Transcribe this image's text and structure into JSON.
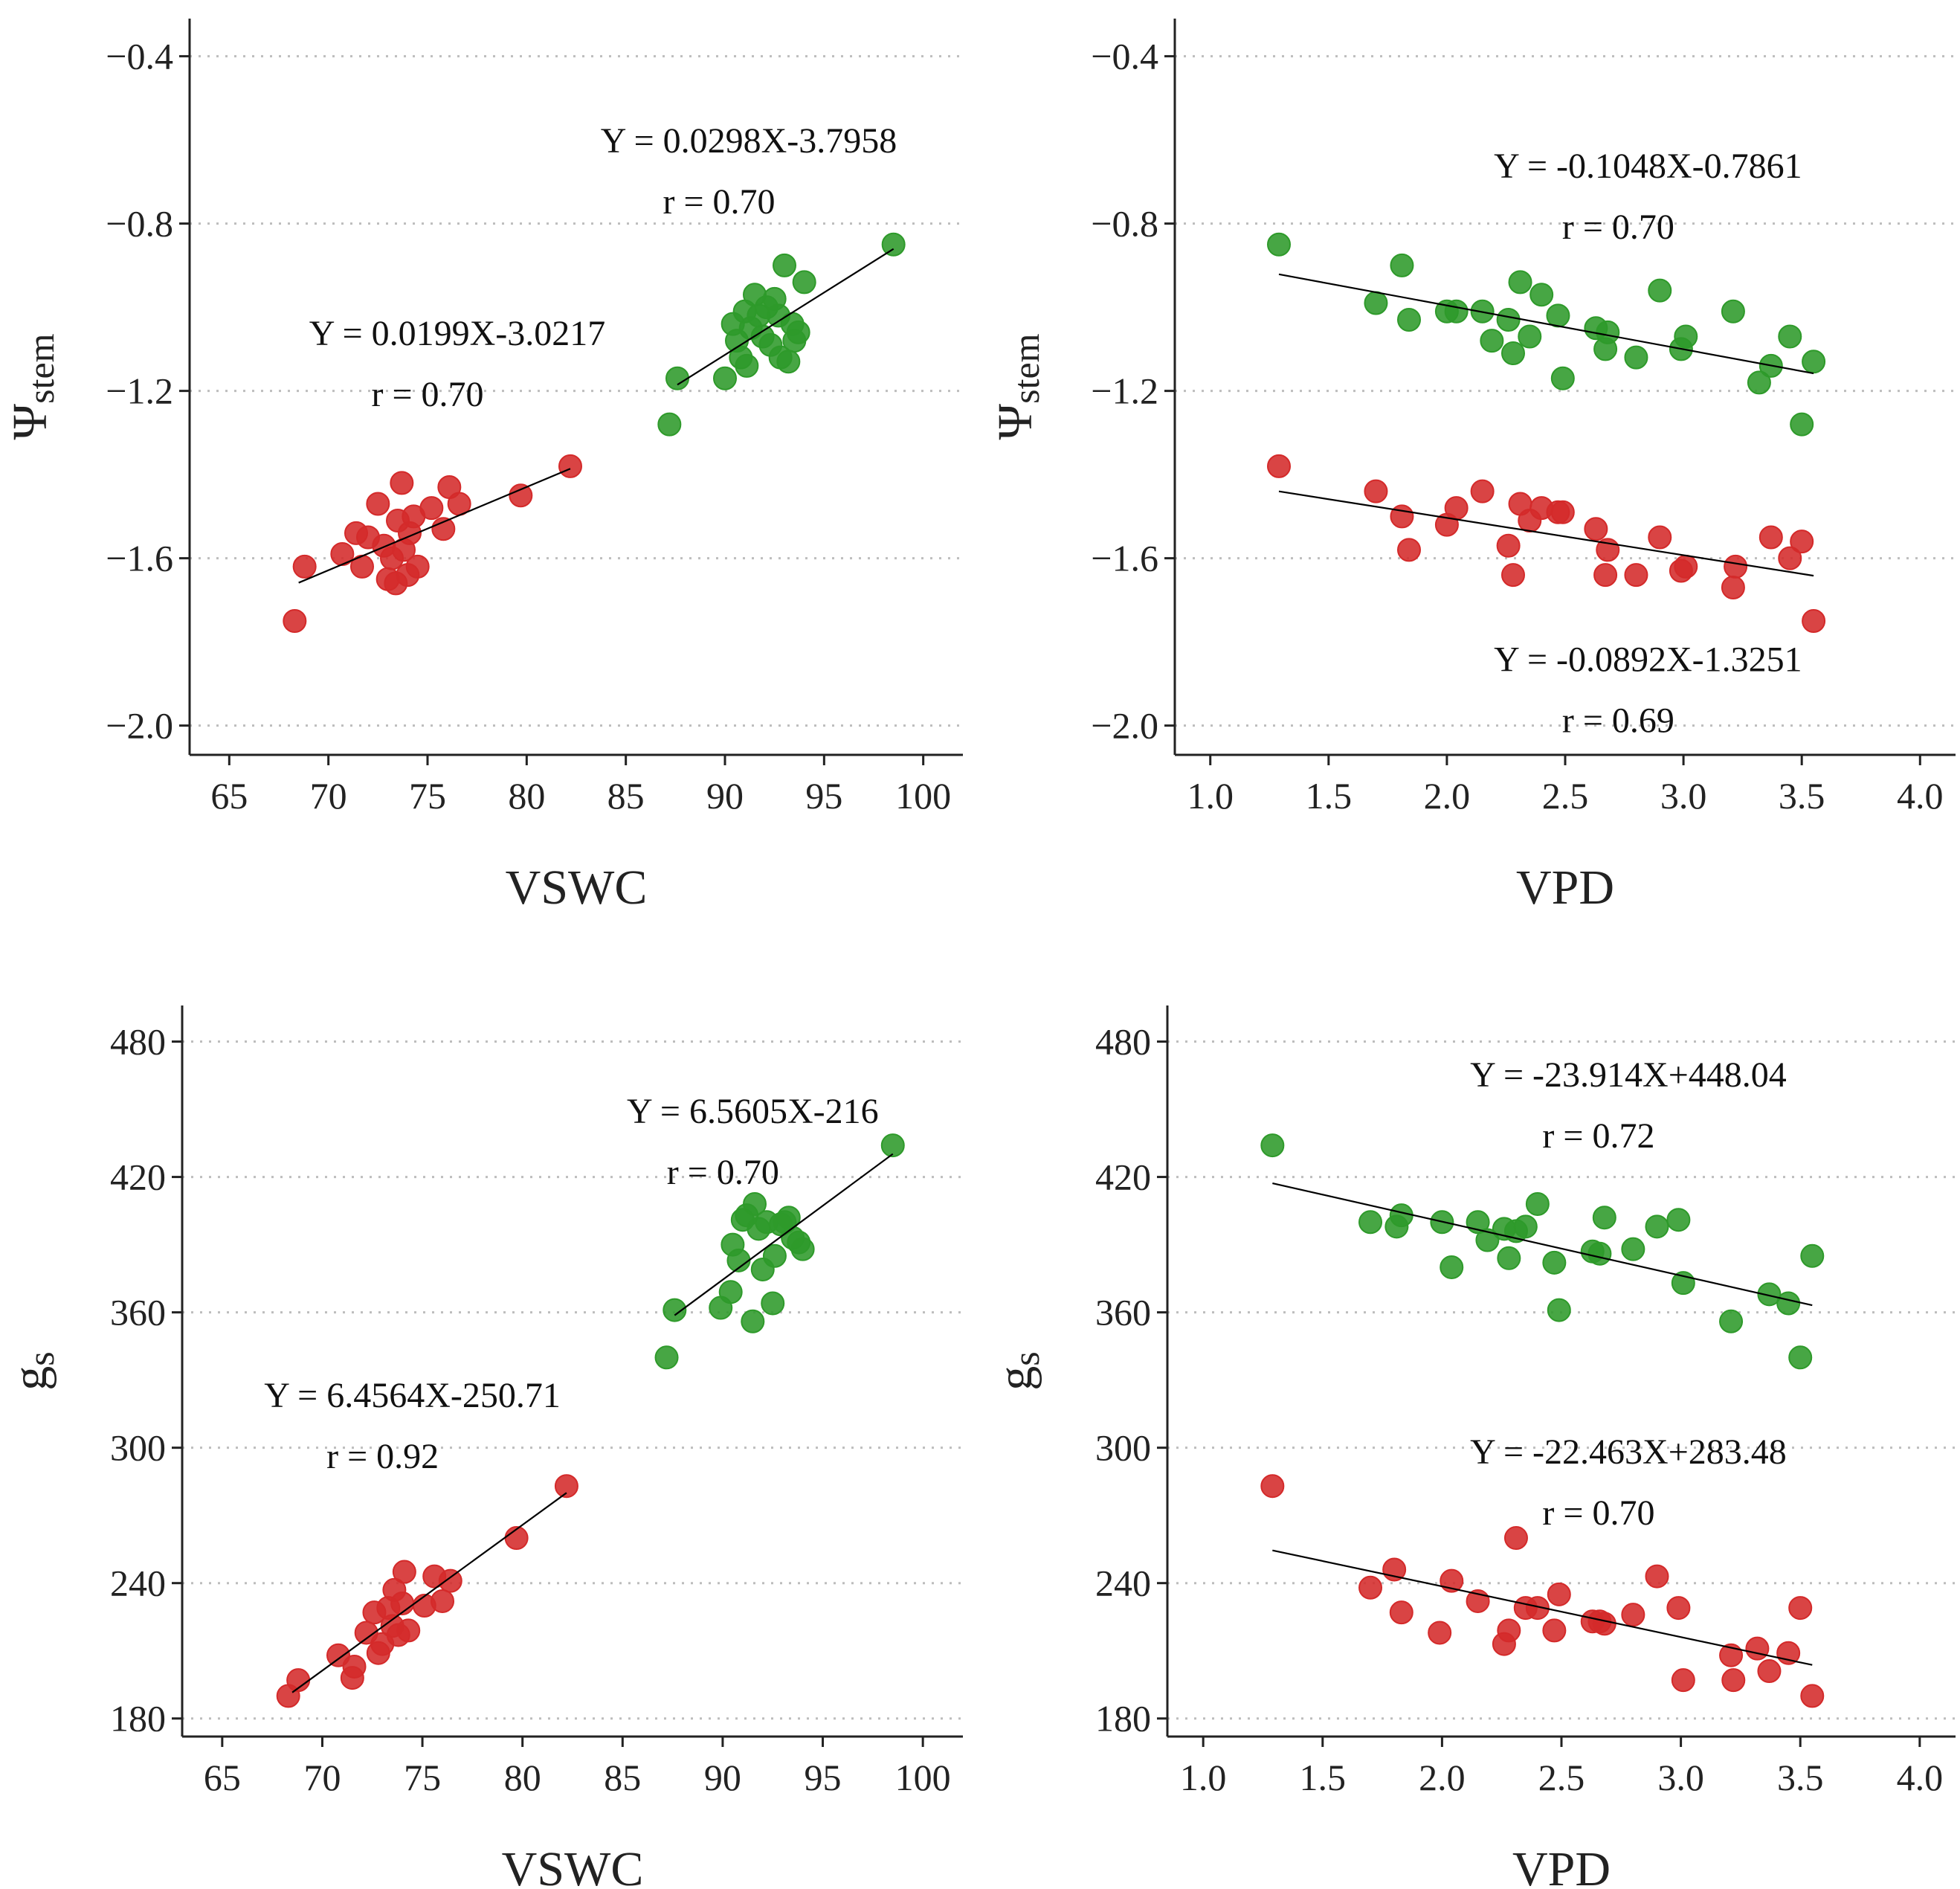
{
  "chart_data": [
    {
      "id": "A",
      "type": "scatter",
      "xlabel": "VSWC",
      "ylabel": {
        "main": "Ψ",
        "sub": "stem"
      },
      "xlim": [
        63,
        102
      ],
      "ylim": [
        -2.07,
        -0.31
      ],
      "xticks": [
        65,
        70,
        75,
        80,
        85,
        90,
        95,
        100
      ],
      "xtick_labels": [
        "65",
        "70",
        "75",
        "80",
        "85",
        "90",
        "95",
        "100"
      ],
      "yticks": [
        -2.0,
        -1.6,
        -1.2,
        -0.8,
        -0.4
      ],
      "ytick_labels": [
        "−2.0",
        "−1.6",
        "−1.2",
        "−0.8",
        "−0.4"
      ],
      "grid": "horizontal dotted",
      "series": [
        {
          "name": "green",
          "color": "#2e9a2a",
          "x": [
            87.2,
            87.6,
            90.0,
            90.4,
            90.6,
            90.8,
            91.0,
            91.1,
            91.3,
            91.5,
            91.7,
            91.9,
            92.1,
            92.3,
            92.5,
            92.7,
            92.8,
            93.0,
            93.2,
            93.4,
            93.5,
            93.7,
            94.0,
            98.5
          ],
          "y": [
            -1.28,
            -1.17,
            -1.17,
            -1.04,
            -1.08,
            -1.12,
            -1.01,
            -1.14,
            -1.05,
            -0.97,
            -1.02,
            -1.07,
            -1.0,
            -1.09,
            -0.98,
            -1.02,
            -1.12,
            -0.9,
            -1.13,
            -1.04,
            -1.08,
            -1.06,
            -0.94,
            -0.85
          ],
          "fit": {
            "equation": "Y = 0.0298X-3.7958",
            "r": "r = 0.70",
            "slope": 0.0298,
            "intercept": -3.7958,
            "x_range": [
              87.6,
              98.5
            ]
          }
        },
        {
          "name": "red",
          "color": "#d42a2a",
          "x": [
            68.3,
            68.8,
            70.7,
            71.4,
            71.7,
            72.0,
            72.5,
            72.8,
            73.0,
            73.2,
            73.4,
            73.5,
            73.7,
            73.8,
            74.0,
            74.1,
            74.3,
            74.5,
            75.2,
            75.8,
            76.1,
            76.6,
            79.7,
            82.2
          ],
          "y": [
            -1.75,
            -1.62,
            -1.59,
            -1.54,
            -1.62,
            -1.55,
            -1.47,
            -1.57,
            -1.65,
            -1.6,
            -1.66,
            -1.51,
            -1.42,
            -1.58,
            -1.64,
            -1.54,
            -1.5,
            -1.62,
            -1.48,
            -1.53,
            -1.43,
            -1.47,
            -1.45,
            -1.38
          ],
          "fit": {
            "equation": "Y = 0.0199X-3.0217",
            "r": "r = 0.70",
            "slope": 0.0199,
            "intercept": -3.0217,
            "x_range": [
              68.5,
              82.2
            ]
          }
        }
      ]
    },
    {
      "id": "B",
      "type": "scatter",
      "xlabel": "VPD",
      "ylabel": {
        "main": "Ψ",
        "sub": "stem"
      },
      "xlim": [
        0.85,
        4.15
      ],
      "ylim": [
        -2.07,
        -0.31
      ],
      "xticks": [
        1.0,
        1.5,
        2.0,
        2.5,
        3.0,
        3.5,
        4.0
      ],
      "xtick_labels": [
        "1.0",
        "1.5",
        "2.0",
        "2.5",
        "3.0",
        "3.5",
        "4.0"
      ],
      "yticks": [
        -2.0,
        -1.6,
        -1.2,
        -0.8,
        -0.4
      ],
      "ytick_labels": [
        "−2.0",
        "−1.6",
        "−1.2",
        "−0.8",
        "−0.4"
      ],
      "grid": "horizontal dotted",
      "series": [
        {
          "name": "green",
          "color": "#2e9a2a",
          "x": [
            1.29,
            1.7,
            1.81,
            1.84,
            2.0,
            2.04,
            2.15,
            2.19,
            2.26,
            2.28,
            2.31,
            2.35,
            2.4,
            2.47,
            2.49,
            2.63,
            2.67,
            2.68,
            2.8,
            2.9,
            2.99,
            3.01,
            3.21,
            3.32,
            3.37,
            3.45,
            3.5,
            3.55
          ],
          "y": [
            -0.85,
            -0.99,
            -0.9,
            -1.03,
            -1.01,
            -1.01,
            -1.01,
            -1.08,
            -1.03,
            -1.11,
            -0.94,
            -1.07,
            -0.97,
            -1.02,
            -1.17,
            -1.05,
            -1.1,
            -1.06,
            -1.12,
            -0.96,
            -1.1,
            -1.07,
            -1.01,
            -1.18,
            -1.14,
            -1.07,
            -1.28,
            -1.13
          ],
          "fit": {
            "equation": "Y = -0.1048X-0.7861",
            "r": "r = 0.70",
            "slope": -0.1048,
            "intercept": -0.7861,
            "x_range": [
              1.29,
              3.55
            ]
          }
        },
        {
          "name": "red",
          "color": "#d42a2a",
          "x": [
            1.29,
            1.7,
            1.81,
            1.84,
            2.0,
            2.04,
            2.15,
            2.26,
            2.28,
            2.31,
            2.35,
            2.4,
            2.47,
            2.49,
            2.63,
            2.67,
            2.68,
            2.8,
            2.9,
            2.99,
            3.01,
            3.21,
            3.22,
            3.37,
            3.45,
            3.5,
            3.55
          ],
          "y": [
            -1.38,
            -1.44,
            -1.5,
            -1.58,
            -1.52,
            -1.48,
            -1.44,
            -1.57,
            -1.64,
            -1.47,
            -1.51,
            -1.48,
            -1.49,
            -1.49,
            -1.53,
            -1.64,
            -1.58,
            -1.64,
            -1.55,
            -1.63,
            -1.62,
            -1.67,
            -1.62,
            -1.55,
            -1.6,
            -1.56,
            -1.75
          ],
          "fit": {
            "equation": "Y = -0.0892X-1.3251",
            "r": "r = 0.69",
            "slope": -0.0892,
            "intercept": -1.3251,
            "x_range": [
              1.29,
              3.55
            ]
          }
        }
      ]
    },
    {
      "id": "C",
      "type": "scatter",
      "xlabel": "VSWC",
      "ylabel": {
        "main": "g",
        "sub": "s"
      },
      "xlim": [
        63,
        102
      ],
      "ylim": [
        172,
        496
      ],
      "xticks": [
        65,
        70,
        75,
        80,
        85,
        90,
        95,
        100
      ],
      "xtick_labels": [
        "65",
        "70",
        "75",
        "80",
        "85",
        "90",
        "95",
        "100"
      ],
      "yticks": [
        180,
        240,
        300,
        360,
        420,
        480
      ],
      "ytick_labels": [
        "180",
        "240",
        "300",
        "360",
        "420",
        "480"
      ],
      "grid": "horizontal dotted",
      "series": [
        {
          "name": "green",
          "color": "#2e9a2a",
          "x": [
            87.2,
            87.6,
            89.9,
            90.4,
            90.5,
            90.8,
            91.0,
            91.2,
            91.5,
            91.6,
            91.8,
            92.0,
            92.2,
            92.5,
            92.6,
            92.9,
            93.1,
            93.3,
            93.5,
            93.8,
            94.0,
            98.5
          ],
          "y": [
            340,
            361,
            362,
            369,
            390,
            383,
            401,
            403,
            356,
            408,
            397,
            379,
            400,
            364,
            385,
            399,
            400,
            402,
            393,
            391,
            388,
            434
          ],
          "fit": {
            "equation": "Y = 6.5605X-216",
            "r": "r = 0.70",
            "slope": 6.5605,
            "intercept": -216,
            "x_range": [
              87.6,
              98.5
            ]
          }
        },
        {
          "name": "red",
          "color": "#d42a2a",
          "x": [
            68.3,
            68.8,
            70.8,
            71.5,
            71.6,
            72.2,
            72.6,
            72.8,
            73.0,
            73.3,
            73.5,
            73.6,
            73.8,
            74.0,
            74.1,
            74.3,
            75.1,
            75.6,
            76.0,
            76.4,
            79.7,
            82.2
          ],
          "y": [
            190,
            197,
            208,
            198,
            203,
            218,
            227,
            209,
            213,
            229,
            221,
            237,
            217,
            231,
            245,
            219,
            230,
            243,
            232,
            241,
            260,
            283
          ],
          "fit": {
            "equation": "Y = 6.4564X-250.71",
            "r": "r = 0.92",
            "slope": 6.4564,
            "intercept": -250.71,
            "x_range": [
              68.5,
              82.2
            ]
          }
        }
      ]
    },
    {
      "id": "D",
      "type": "scatter",
      "xlabel": "VPD",
      "ylabel": {
        "main": "g",
        "sub": "s"
      },
      "xlim": [
        0.85,
        4.15
      ],
      "ylim": [
        172,
        496
      ],
      "xticks": [
        1.0,
        1.5,
        2.0,
        2.5,
        3.0,
        3.5,
        4.0
      ],
      "xtick_labels": [
        "1.0",
        "1.5",
        "2.0",
        "2.5",
        "3.0",
        "3.5",
        "4.0"
      ],
      "yticks": [
        180,
        240,
        300,
        360,
        420,
        480
      ],
      "ytick_labels": [
        "180",
        "240",
        "300",
        "360",
        "420",
        "480"
      ],
      "grid": "horizontal dotted",
      "series": [
        {
          "name": "green",
          "color": "#2e9a2a",
          "x": [
            1.29,
            1.7,
            1.81,
            1.83,
            2.0,
            2.04,
            2.15,
            2.19,
            2.26,
            2.28,
            2.31,
            2.35,
            2.4,
            2.47,
            2.49,
            2.63,
            2.66,
            2.68,
            2.8,
            2.9,
            2.99,
            3.01,
            3.21,
            3.37,
            3.45,
            3.5,
            3.55
          ],
          "y": [
            434,
            400,
            398,
            403,
            400,
            380,
            400,
            392,
            397,
            384,
            396,
            398,
            408,
            382,
            361,
            387,
            386,
            402,
            388,
            398,
            401,
            373,
            356,
            368,
            364,
            340,
            385
          ],
          "fit": {
            "equation": "Y = -23.914X+448.04",
            "r": "r = 0.72",
            "slope": -23.914,
            "intercept": 448.04,
            "x_range": [
              1.29,
              3.55
            ]
          }
        },
        {
          "name": "red",
          "color": "#d42a2a",
          "x": [
            1.29,
            1.7,
            1.8,
            1.83,
            1.99,
            2.04,
            2.15,
            2.26,
            2.28,
            2.31,
            2.35,
            2.4,
            2.47,
            2.49,
            2.63,
            2.66,
            2.68,
            2.8,
            2.9,
            2.99,
            3.01,
            3.21,
            3.22,
            3.32,
            3.37,
            3.45,
            3.5,
            3.55
          ],
          "y": [
            283,
            238,
            246,
            227,
            218,
            241,
            232,
            213,
            219,
            260,
            229,
            229,
            219,
            235,
            223,
            223,
            222,
            226,
            243,
            229,
            197,
            208,
            197,
            211,
            201,
            209,
            229,
            190
          ],
          "fit": {
            "equation": "Y = -22.463X+283.48",
            "r": "r = 0.70",
            "slope": -22.463,
            "intercept": 283.48,
            "x_range": [
              1.29,
              3.55
            ]
          }
        }
      ]
    }
  ]
}
